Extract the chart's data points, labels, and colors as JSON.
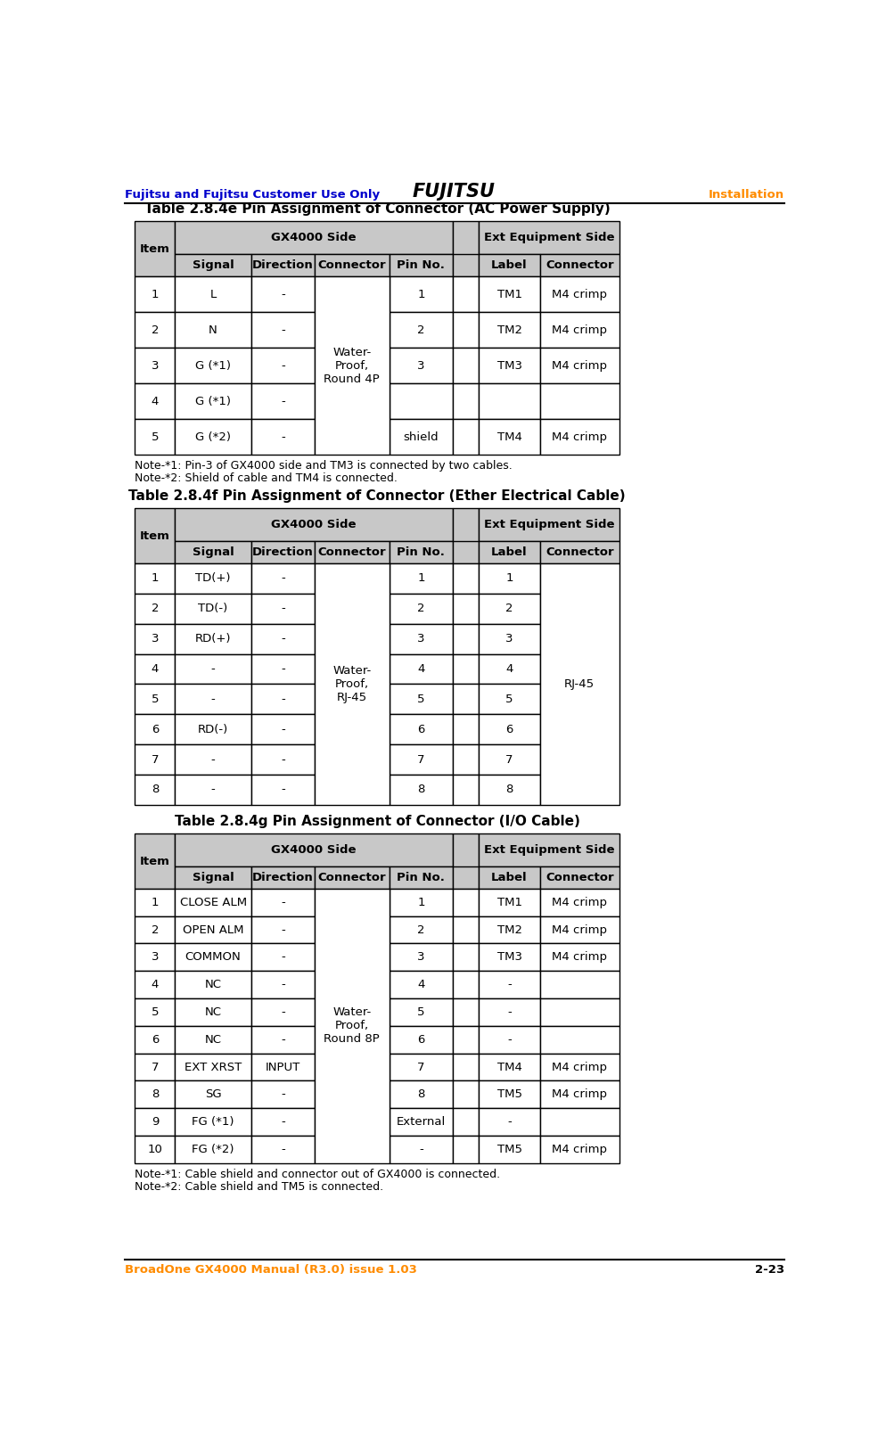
{
  "header_left": "Fujitsu and Fujitsu Customer Use Only",
  "header_center": "FUJITSU",
  "header_right": "Installation",
  "footer_left": "BroadOne GX4000 Manual (R3.0) issue 1.03",
  "footer_right": "2-23",
  "header_left_color": "#0000CC",
  "header_right_color": "#FF8C00",
  "footer_left_color": "#FF8C00",
  "footer_right_color": "#000000",
  "table1_title": "Table 2.8.4e Pin Assignment of Connector (AC Power Supply)",
  "table2_title": "Table 2.8.4f Pin Assignment of Connector (Ether Electrical Cable)",
  "table3_title": "Table 2.8.4g Pin Assignment of Connector (I/O Cable)",
  "gray": "#C8C8C8",
  "white": "#FFFFFF",
  "note1_lines": [
    "Note-*1: Pin-3 of GX4000 side and TM3 is connected by two cables.",
    "Note-*2: Shield of cable and TM4 is connected."
  ],
  "note2_lines": [
    "Note-*1: Cable shield and connector out of GX4000 is connected.",
    "Note-*2: Cable shield and TM5 is connected."
  ],
  "table1_rows": [
    [
      "1",
      "L",
      "-",
      "1",
      "TM1",
      "M4 crimp"
    ],
    [
      "2",
      "N",
      "-",
      "2",
      "TM2",
      "M4 crimp"
    ],
    [
      "3",
      "G (*1)",
      "-",
      "3",
      "TM3",
      "M4 crimp"
    ],
    [
      "4",
      "G (*1)",
      "-",
      "",
      "",
      ""
    ],
    [
      "5",
      "G (*2)",
      "-",
      "shield",
      "TM4",
      "M4 crimp"
    ]
  ],
  "table1_connector": "Water-\nProof,\nRound 4P",
  "table2_rows": [
    [
      "1",
      "TD(+)",
      "-",
      "1",
      "1",
      ""
    ],
    [
      "2",
      "TD(-)",
      "-",
      "2",
      "2",
      ""
    ],
    [
      "3",
      "RD(+)",
      "-",
      "3",
      "3",
      ""
    ],
    [
      "4",
      "-",
      "-",
      "4",
      "4",
      ""
    ],
    [
      "5",
      "-",
      "-",
      "5",
      "5",
      ""
    ],
    [
      "6",
      "RD(-)",
      "-",
      "6",
      "6",
      ""
    ],
    [
      "7",
      "-",
      "-",
      "7",
      "7",
      ""
    ],
    [
      "8",
      "-",
      "-",
      "8",
      "8",
      ""
    ]
  ],
  "table2_connector": "Water-\nProof,\nRJ-45",
  "table2_rj45": "RJ-45",
  "table3_rows": [
    [
      "1",
      "CLOSE ALM",
      "-",
      "1",
      "TM1",
      "M4 crimp"
    ],
    [
      "2",
      "OPEN ALM",
      "-",
      "2",
      "TM2",
      "M4 crimp"
    ],
    [
      "3",
      "COMMON",
      "-",
      "3",
      "TM3",
      "M4 crimp"
    ],
    [
      "4",
      "NC",
      "-",
      "4",
      "-",
      ""
    ],
    [
      "5",
      "NC",
      "-",
      "5",
      "-",
      ""
    ],
    [
      "6",
      "NC",
      "-",
      "6",
      "-",
      ""
    ],
    [
      "7",
      "EXT XRST",
      "INPUT",
      "7",
      "TM4",
      "M4 crimp"
    ],
    [
      "8",
      "SG",
      "-",
      "8",
      "TM5",
      "M4 crimp"
    ],
    [
      "9",
      "FG (*1)",
      "-",
      "External",
      "-",
      ""
    ],
    [
      "10",
      "FG (*2)",
      "-",
      "-",
      "TM5",
      "M4 crimp"
    ]
  ],
  "table3_connector": "Water-\nProof,\nRound 8P",
  "table3_row10_dir": "-"
}
